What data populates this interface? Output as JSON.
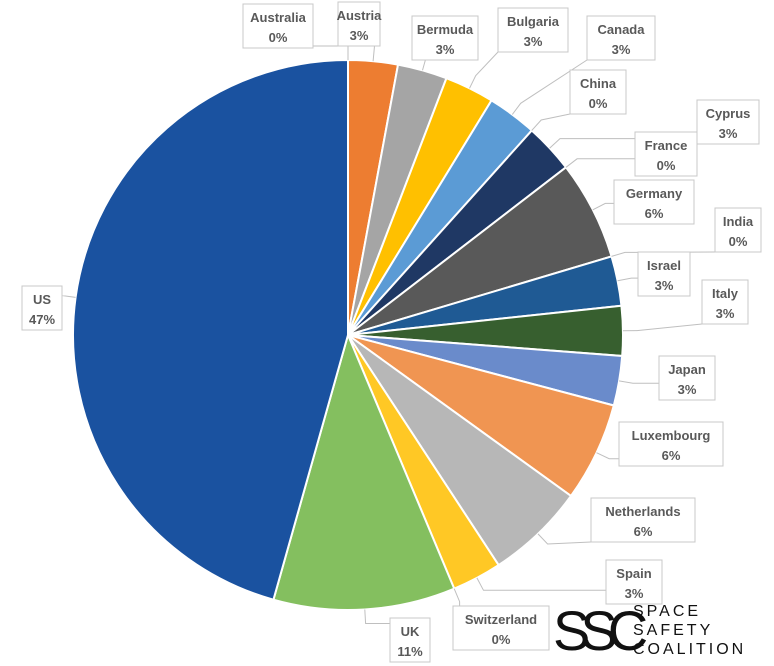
{
  "chart_data": {
    "type": "pie",
    "title": "",
    "slices": [
      {
        "label": "Australia",
        "value": 0,
        "value_label": "0%",
        "color": "#4472C4"
      },
      {
        "label": "Austria",
        "value": 3,
        "value_label": "3%",
        "color": "#ED7D31"
      },
      {
        "label": "Bermuda",
        "value": 3,
        "value_label": "3%",
        "color": "#A5A5A5"
      },
      {
        "label": "Bulgaria",
        "value": 3,
        "value_label": "3%",
        "color": "#FFC000"
      },
      {
        "label": "Canada",
        "value": 3,
        "value_label": "3%",
        "color": "#5B9BD5"
      },
      {
        "label": "China",
        "value": 0,
        "value_label": "0%",
        "color": "#70AD47"
      },
      {
        "label": "Cyprus",
        "value": 3,
        "value_label": "3%",
        "color": "#1F3864"
      },
      {
        "label": "France",
        "value": 0,
        "value_label": "0%",
        "color": "#9E480E"
      },
      {
        "label": "Germany",
        "value": 6,
        "value_label": "6%",
        "color": "#595959"
      },
      {
        "label": "India",
        "value": 0,
        "value_label": "0%",
        "color": "#997300"
      },
      {
        "label": "Israel",
        "value": 3,
        "value_label": "3%",
        "color": "#1F5A94"
      },
      {
        "label": "Italy",
        "value": 3,
        "value_label": "3%",
        "color": "#375F2F"
      },
      {
        "label": "Japan",
        "value": 3,
        "value_label": "3%",
        "color": "#6A8BCB"
      },
      {
        "label": "Luxembourg",
        "value": 6,
        "value_label": "6%",
        "color": "#F09552"
      },
      {
        "label": "Netherlands",
        "value": 6,
        "value_label": "6%",
        "color": "#B7B7B7"
      },
      {
        "label": "Spain",
        "value": 3,
        "value_label": "3%",
        "color": "#FFC825"
      },
      {
        "label": "Switzerland",
        "value": 0,
        "value_label": "0%",
        "color": "#7CAFDD"
      },
      {
        "label": "UK",
        "value": 11,
        "value_label": "11%",
        "color": "#84BF5F"
      },
      {
        "label": "US",
        "value": 47,
        "value_label": "47%",
        "color": "#1A52A0"
      }
    ],
    "start_angle_deg": 0,
    "direction": "clockwise"
  },
  "logo": {
    "mark": "SSC",
    "line1": "SPACE",
    "line2": "SAFETY",
    "line3": "COALITION"
  }
}
